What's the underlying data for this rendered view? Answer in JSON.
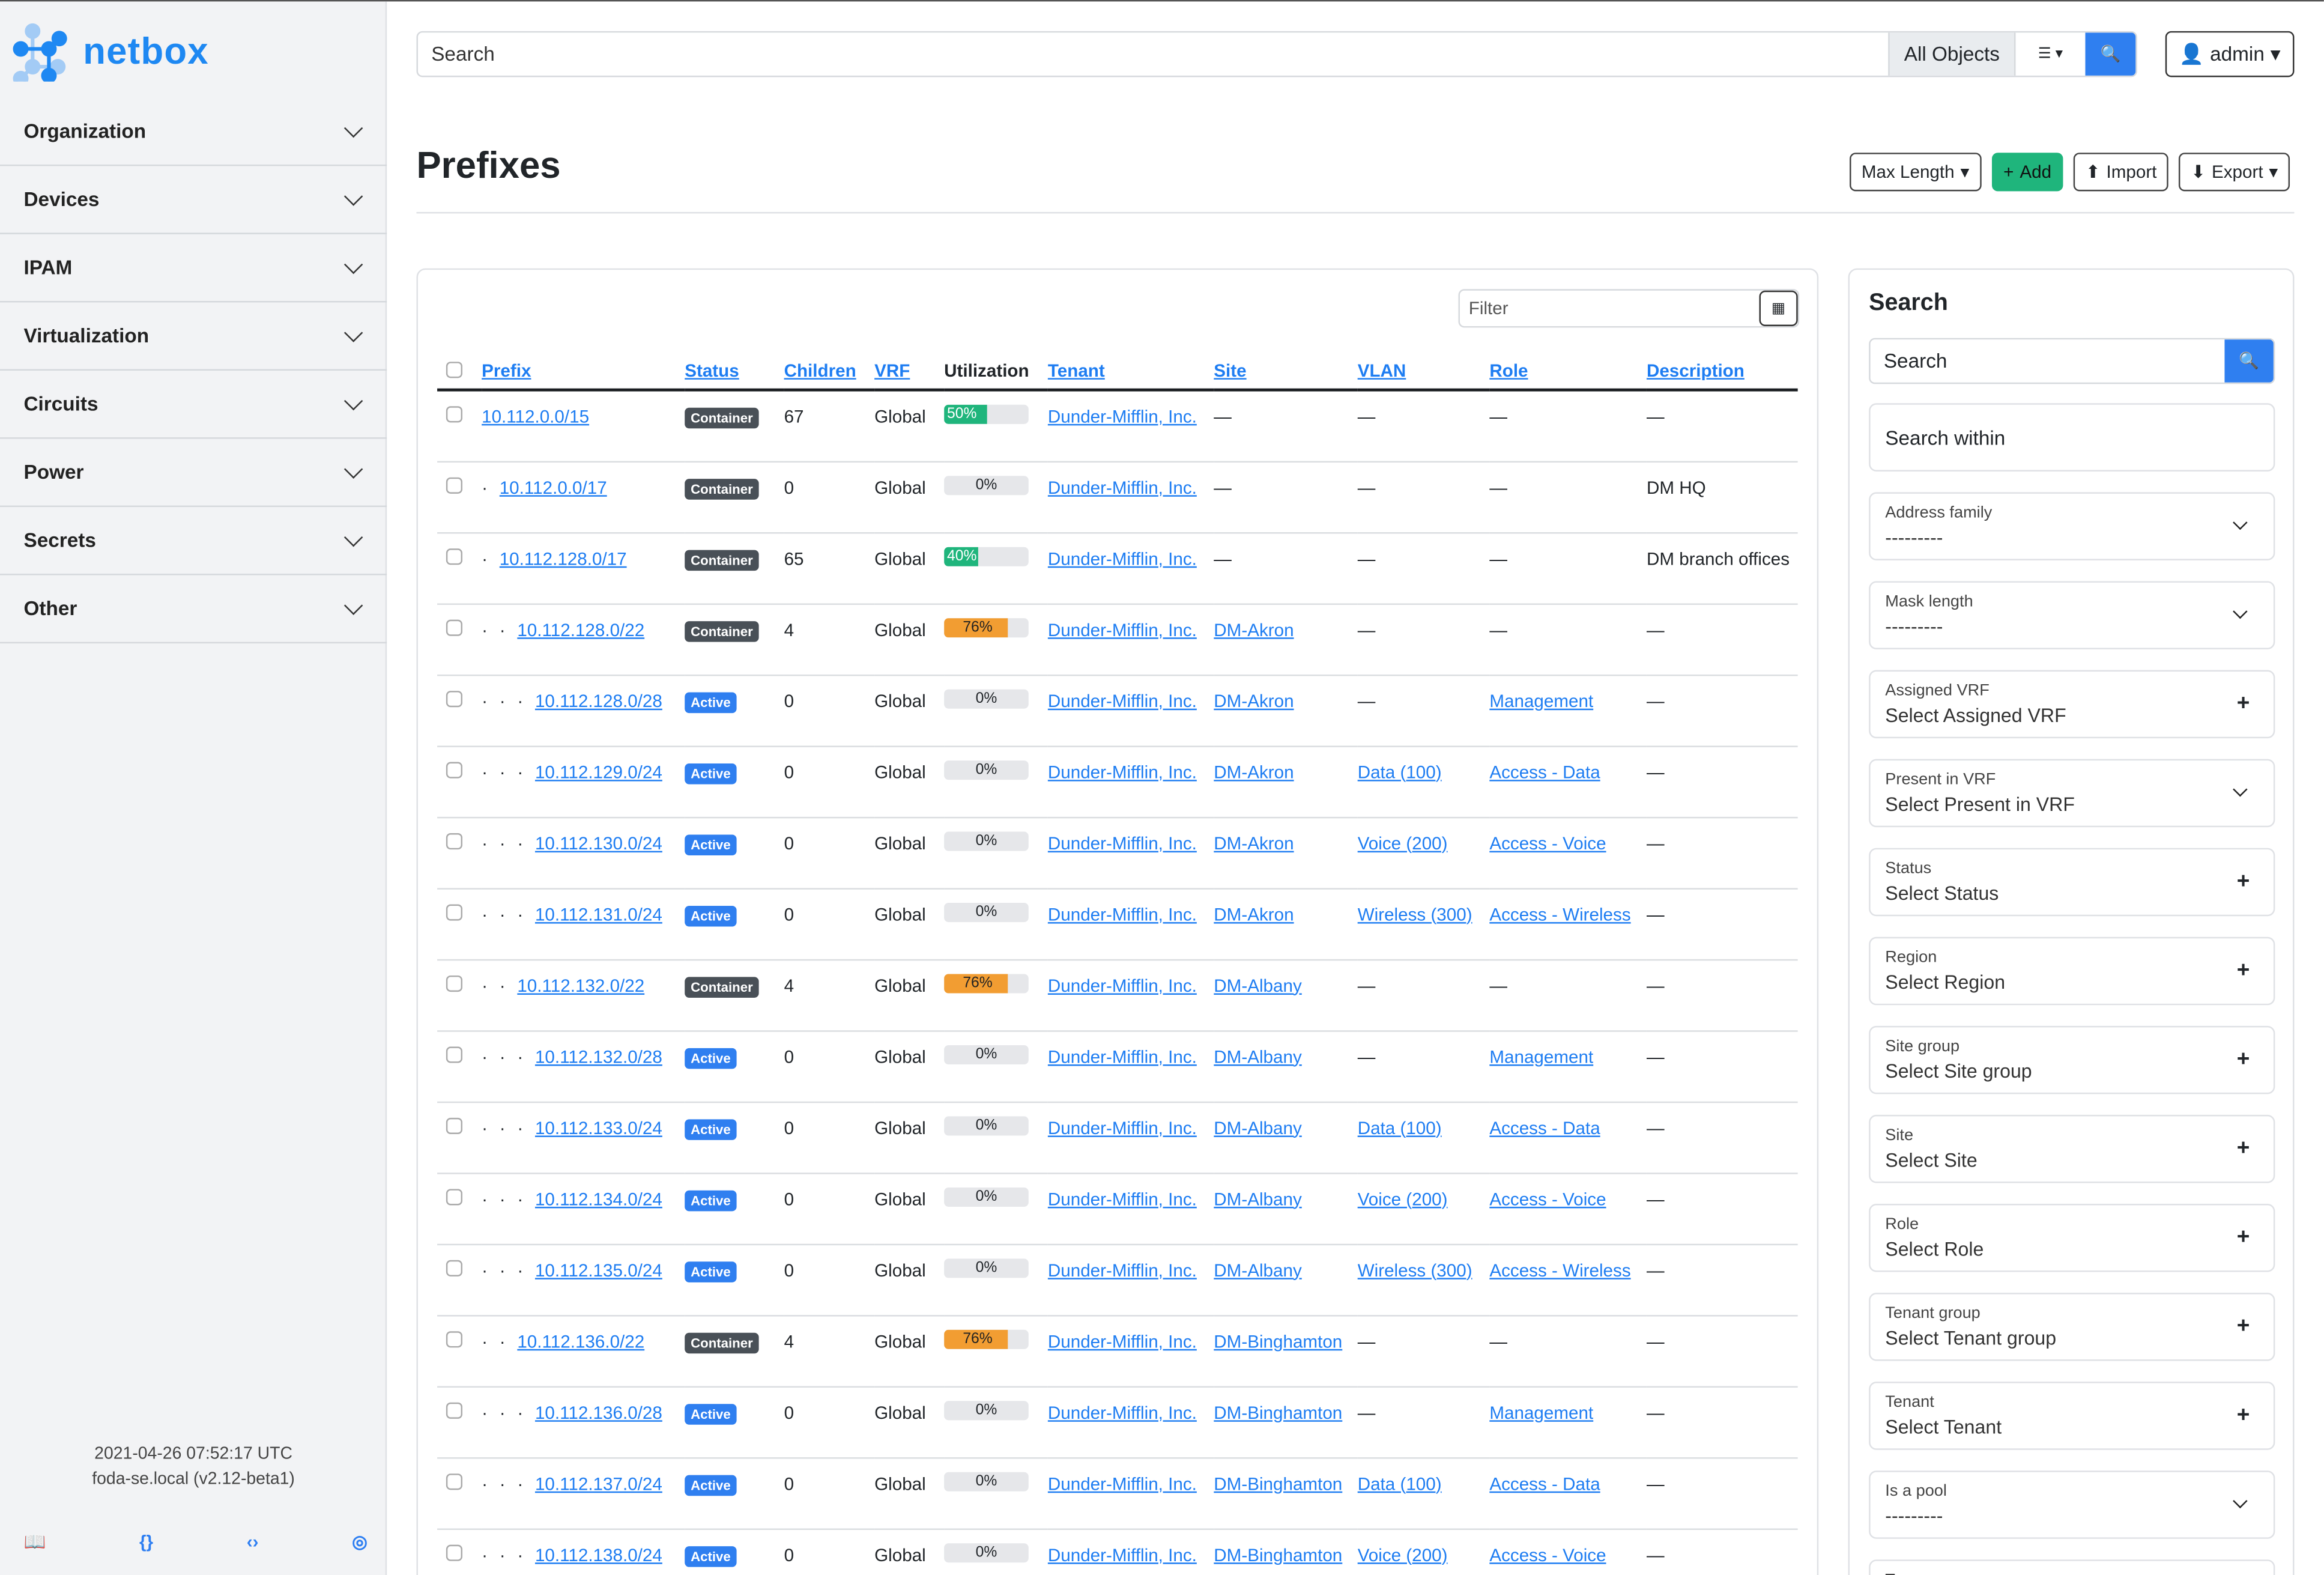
{
  "app": {
    "logo_text": "netbox",
    "brand_color": "#1e88f2"
  },
  "sidebar": {
    "items": [
      {
        "label": "Organization"
      },
      {
        "label": "Devices"
      },
      {
        "label": "IPAM"
      },
      {
        "label": "Virtualization"
      },
      {
        "label": "Circuits"
      },
      {
        "label": "Power"
      },
      {
        "label": "Secrets"
      },
      {
        "label": "Other"
      }
    ],
    "footer": {
      "timestamp": "2021-04-26 07:52:17 UTC",
      "host": "foda-se.local (v2.12-beta1)"
    },
    "footer_icons": [
      "book-icon",
      "braces-icon",
      "code-icon",
      "lifebuoy-icon"
    ]
  },
  "header": {
    "search_placeholder": "Search",
    "scope": "All Objects",
    "user": "admin"
  },
  "page": {
    "title": "Prefixes",
    "actions": {
      "max_length": "Max Length",
      "add": "Add",
      "import": "Import",
      "export": "Export"
    }
  },
  "table": {
    "filter_placeholder": "Filter",
    "columns": [
      "Prefix",
      "Status",
      "Children",
      "VRF",
      "Utilization",
      "Tenant",
      "Site",
      "VLAN",
      "Role",
      "Description"
    ],
    "status_colors": {
      "Container": "#495057",
      "Active": "#2f7ff0"
    },
    "rows": [
      {
        "prefix": "10.112.0.0/15",
        "depth": 0,
        "status": "Container",
        "children": "67",
        "vrf": "Global",
        "util": 50,
        "util_label": "50%",
        "tenant": "Dunder-Mifflin, Inc.",
        "site": "—",
        "vlan": "—",
        "role": "—",
        "description": "—"
      },
      {
        "prefix": "10.112.0.0/17",
        "depth": 1,
        "status": "Container",
        "children": "0",
        "vrf": "Global",
        "util": 0,
        "util_label": "0%",
        "tenant": "Dunder-Mifflin, Inc.",
        "site": "—",
        "vlan": "—",
        "role": "—",
        "description": "DM HQ"
      },
      {
        "prefix": "10.112.128.0/17",
        "depth": 1,
        "status": "Container",
        "children": "65",
        "vrf": "Global",
        "util": 40,
        "util_label": "40%",
        "tenant": "Dunder-Mifflin, Inc.",
        "site": "—",
        "vlan": "—",
        "role": "—",
        "description": "DM branch offices"
      },
      {
        "prefix": "10.112.128.0/22",
        "depth": 2,
        "status": "Container",
        "children": "4",
        "vrf": "Global",
        "util": 76,
        "util_label": "76%",
        "tenant": "Dunder-Mifflin, Inc.",
        "site": "DM-Akron",
        "vlan": "—",
        "role": "—",
        "description": "—"
      },
      {
        "prefix": "10.112.128.0/28",
        "depth": 3,
        "status": "Active",
        "children": "0",
        "vrf": "Global",
        "util": 0,
        "util_label": "0%",
        "tenant": "Dunder-Mifflin, Inc.",
        "site": "DM-Akron",
        "vlan": "—",
        "role": "Management",
        "description": "—"
      },
      {
        "prefix": "10.112.129.0/24",
        "depth": 3,
        "status": "Active",
        "children": "0",
        "vrf": "Global",
        "util": 0,
        "util_label": "0%",
        "tenant": "Dunder-Mifflin, Inc.",
        "site": "DM-Akron",
        "vlan": "Data (100)",
        "role": "Access - Data",
        "description": "—"
      },
      {
        "prefix": "10.112.130.0/24",
        "depth": 3,
        "status": "Active",
        "children": "0",
        "vrf": "Global",
        "util": 0,
        "util_label": "0%",
        "tenant": "Dunder-Mifflin, Inc.",
        "site": "DM-Akron",
        "vlan": "Voice (200)",
        "role": "Access - Voice",
        "description": "—"
      },
      {
        "prefix": "10.112.131.0/24",
        "depth": 3,
        "status": "Active",
        "children": "0",
        "vrf": "Global",
        "util": 0,
        "util_label": "0%",
        "tenant": "Dunder-Mifflin, Inc.",
        "site": "DM-Akron",
        "vlan": "Wireless (300)",
        "role": "Access - Wireless",
        "description": "—"
      },
      {
        "prefix": "10.112.132.0/22",
        "depth": 2,
        "status": "Container",
        "children": "4",
        "vrf": "Global",
        "util": 76,
        "util_label": "76%",
        "tenant": "Dunder-Mifflin, Inc.",
        "site": "DM-Albany",
        "vlan": "—",
        "role": "—",
        "description": "—"
      },
      {
        "prefix": "10.112.132.0/28",
        "depth": 3,
        "status": "Active",
        "children": "0",
        "vrf": "Global",
        "util": 0,
        "util_label": "0%",
        "tenant": "Dunder-Mifflin, Inc.",
        "site": "DM-Albany",
        "vlan": "—",
        "role": "Management",
        "description": "—"
      },
      {
        "prefix": "10.112.133.0/24",
        "depth": 3,
        "status": "Active",
        "children": "0",
        "vrf": "Global",
        "util": 0,
        "util_label": "0%",
        "tenant": "Dunder-Mifflin, Inc.",
        "site": "DM-Albany",
        "vlan": "Data (100)",
        "role": "Access - Data",
        "description": "—"
      },
      {
        "prefix": "10.112.134.0/24",
        "depth": 3,
        "status": "Active",
        "children": "0",
        "vrf": "Global",
        "util": 0,
        "util_label": "0%",
        "tenant": "Dunder-Mifflin, Inc.",
        "site": "DM-Albany",
        "vlan": "Voice (200)",
        "role": "Access - Voice",
        "description": "—"
      },
      {
        "prefix": "10.112.135.0/24",
        "depth": 3,
        "status": "Active",
        "children": "0",
        "vrf": "Global",
        "util": 0,
        "util_label": "0%",
        "tenant": "Dunder-Mifflin, Inc.",
        "site": "DM-Albany",
        "vlan": "Wireless (300)",
        "role": "Access - Wireless",
        "description": "—"
      },
      {
        "prefix": "10.112.136.0/22",
        "depth": 2,
        "status": "Container",
        "children": "4",
        "vrf": "Global",
        "util": 76,
        "util_label": "76%",
        "tenant": "Dunder-Mifflin, Inc.",
        "site": "DM-Binghamton",
        "vlan": "—",
        "role": "—",
        "description": "—"
      },
      {
        "prefix": "10.112.136.0/28",
        "depth": 3,
        "status": "Active",
        "children": "0",
        "vrf": "Global",
        "util": 0,
        "util_label": "0%",
        "tenant": "Dunder-Mifflin, Inc.",
        "site": "DM-Binghamton",
        "vlan": "—",
        "role": "Management",
        "description": "—"
      },
      {
        "prefix": "10.112.137.0/24",
        "depth": 3,
        "status": "Active",
        "children": "0",
        "vrf": "Global",
        "util": 0,
        "util_label": "0%",
        "tenant": "Dunder-Mifflin, Inc.",
        "site": "DM-Binghamton",
        "vlan": "Data (100)",
        "role": "Access - Data",
        "description": "—"
      },
      {
        "prefix": "10.112.138.0/24",
        "depth": 3,
        "status": "Active",
        "children": "0",
        "vrf": "Global",
        "util": 0,
        "util_label": "0%",
        "tenant": "Dunder-Mifflin, Inc.",
        "site": "DM-Binghamton",
        "vlan": "Voice (200)",
        "role": "Access - Voice",
        "description": "—"
      }
    ]
  },
  "search_panel": {
    "title": "Search",
    "search_placeholder": "Search",
    "search_within": "Search within",
    "fields": [
      {
        "label": "Address family",
        "value": "---------",
        "icon": "chevron-down"
      },
      {
        "label": "Mask length",
        "value": "---------",
        "icon": "chevron-down"
      },
      {
        "label": "Assigned VRF",
        "value": "Select Assigned VRF",
        "icon": "plus"
      },
      {
        "label": "Present in VRF",
        "value": "Select Present in VRF",
        "icon": "chevron-down"
      },
      {
        "label": "Status",
        "value": "Select Status",
        "icon": "plus"
      },
      {
        "label": "Region",
        "value": "Select Region",
        "icon": "plus"
      },
      {
        "label": "Site group",
        "value": "Select Site group",
        "icon": "plus"
      },
      {
        "label": "Site",
        "value": "Select Site",
        "icon": "plus"
      },
      {
        "label": "Role",
        "value": "Select Role",
        "icon": "plus"
      },
      {
        "label": "Tenant group",
        "value": "Select Tenant group",
        "icon": "plus"
      },
      {
        "label": "Tenant",
        "value": "Select Tenant",
        "icon": "plus"
      },
      {
        "label": "Is a pool",
        "value": "---------",
        "icon": "chevron-down"
      },
      {
        "label": "Tags",
        "value": "",
        "icon": ""
      }
    ]
  }
}
